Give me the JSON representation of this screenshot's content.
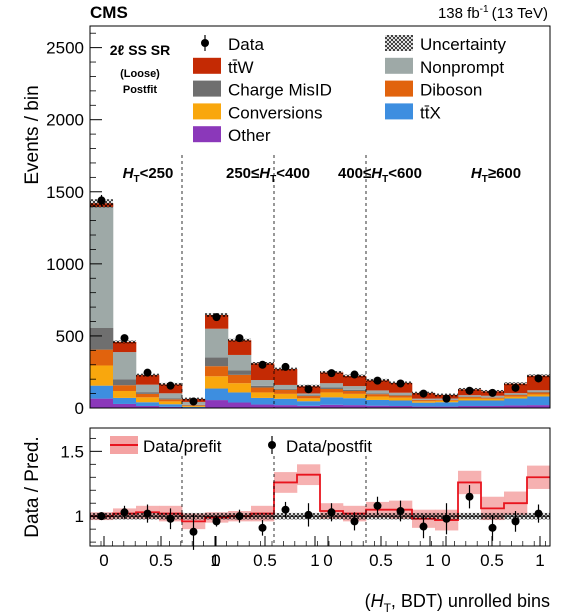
{
  "header": {
    "experiment": "CMS",
    "lumi": "138 fb",
    "lumi_sup": "-1",
    "energy": "(13 TeV)"
  },
  "region": {
    "line1": "2ℓ SS SR",
    "line2": "(Loose)",
    "line3": "Postfit"
  },
  "legend": {
    "left": [
      {
        "label": "Data",
        "kind": "data"
      },
      {
        "label": "tt̄W",
        "color": "#c42a04"
      },
      {
        "label": "Charge MisID",
        "color": "#6f6f6f"
      },
      {
        "label": "Conversions",
        "color": "#f9a70d"
      },
      {
        "label": "Other",
        "color": "#8b38ba"
      }
    ],
    "right": [
      {
        "label": "Uncertainty",
        "kind": "hatch"
      },
      {
        "label": "Nonprompt",
        "color": "#9ea9a7"
      },
      {
        "label": "Diboson",
        "color": "#e1630d"
      },
      {
        "label": "tt̄X",
        "color": "#3d8ee0"
      }
    ]
  },
  "categories": [
    "H_T<250",
    "250≤H_T<400",
    "400≤H_T<600",
    "H_T≥600"
  ],
  "category_labels": [
    {
      "pre": "",
      "main": "H",
      "sub": "T",
      "post": "<250"
    },
    {
      "pre": "250≤",
      "main": "H",
      "sub": "T",
      "post": "<400"
    },
    {
      "pre": "400≤",
      "main": "H",
      "sub": "T",
      "post": "<600"
    },
    {
      "pre": "",
      "main": "H",
      "sub": "T",
      "post": "≥600"
    }
  ],
  "axes": {
    "upper_ylabel": "Events / bin",
    "upper_yticks": [
      "0",
      "500",
      "1000",
      "1500",
      "2000",
      "2500"
    ],
    "upper_tick_values": [
      0,
      500,
      1000,
      1500,
      2000,
      2500
    ],
    "lower_ylabel": "Data / Pred.",
    "lower_yticks": [
      "1",
      "1.5"
    ],
    "lower_tick_values": [
      1,
      1.5
    ],
    "xticks": [
      "0",
      "0.5",
      "1",
      "0",
      "0.5",
      "1",
      "0",
      "0.5",
      "1",
      "0",
      "0.5",
      "1"
    ],
    "xlabel_pre": "(",
    "xlabel_main": "H",
    "xlabel_sub": "T",
    "xlabel_post": ", BDT) unrolled bins"
  },
  "ratio_legend": {
    "prefit": "Data/prefit",
    "postfit": "Data/postfit"
  },
  "chart_data": {
    "type": "bar",
    "stacked": true,
    "n_bins": 20,
    "bins_per_category": [
      4,
      4,
      4,
      8
    ],
    "ylim": [
      0,
      2650
    ],
    "ratio_ylim": [
      0.77,
      1.68
    ],
    "series": [
      {
        "name": "Other",
        "color": "#8b38ba",
        "values": [
          65,
          28,
          14,
          8,
          2,
          55,
          38,
          24,
          20,
          15,
          22,
          20,
          16,
          14,
          10,
          10,
          14,
          14,
          18,
          20
        ]
      },
      {
        "name": "ttX",
        "color": "#3d8ee0",
        "values": [
          90,
          42,
          26,
          18,
          6,
          80,
          70,
          46,
          44,
          32,
          52,
          48,
          40,
          38,
          27,
          30,
          38,
          38,
          48,
          60
        ]
      },
      {
        "name": "Conversions",
        "color": "#f9a70d",
        "values": [
          140,
          48,
          34,
          20,
          6,
          85,
          64,
          38,
          34,
          20,
          34,
          30,
          24,
          20,
          10,
          10,
          14,
          12,
          12,
          14
        ]
      },
      {
        "name": "Diboson",
        "color": "#e1630d",
        "values": [
          110,
          40,
          24,
          14,
          5,
          70,
          58,
          34,
          28,
          16,
          24,
          20,
          16,
          14,
          8,
          6,
          10,
          8,
          12,
          14
        ]
      },
      {
        "name": "Charge MisID",
        "color": "#6f6f6f",
        "values": [
          150,
          40,
          12,
          8,
          3,
          60,
          30,
          12,
          6,
          4,
          10,
          8,
          6,
          4,
          2,
          2,
          3,
          3,
          3,
          3
        ]
      },
      {
        "name": "Nonprompt",
        "color": "#9ea9a7",
        "values": [
          840,
          190,
          52,
          34,
          20,
          200,
          108,
          40,
          28,
          14,
          30,
          26,
          20,
          16,
          8,
          8,
          10,
          10,
          10,
          12
        ]
      },
      {
        "name": "ttW",
        "color": "#c42a04",
        "values": [
          25,
          70,
          66,
          62,
          20,
          95,
          102,
          115,
          110,
          50,
          75,
          70,
          70,
          68,
          38,
          24,
          40,
          30,
          65,
          100
        ]
      }
    ],
    "data": {
      "values": [
        1440,
        485,
        245,
        155,
        45,
        630,
        485,
        300,
        285,
        130,
        242,
        232,
        190,
        170,
        100,
        65,
        120,
        105,
        140,
        205
      ],
      "errors": [
        38,
        22,
        16,
        13,
        7,
        25,
        22,
        17,
        17,
        11,
        16,
        15,
        14,
        13,
        10,
        8,
        11,
        10,
        12,
        14
      ]
    },
    "ratio_postfit": {
      "values": [
        1.0,
        1.03,
        1.02,
        0.98,
        0.88,
        0.96,
        1.0,
        0.91,
        1.05,
        1.01,
        1.03,
        0.96,
        1.08,
        1.04,
        0.92,
        0.98,
        1.15,
        0.91,
        0.96,
        1.02
      ],
      "errors": [
        0.03,
        0.05,
        0.07,
        0.08,
        0.14,
        0.04,
        0.05,
        0.06,
        0.06,
        0.09,
        0.07,
        0.07,
        0.07,
        0.08,
        0.09,
        0.12,
        0.09,
        0.1,
        0.08,
        0.07
      ]
    },
    "ratio_prefit": {
      "values": [
        1.0,
        1.02,
        1.03,
        1.02,
        0.96,
        0.99,
        1.0,
        1.02,
        1.26,
        1.32,
        1.04,
        1.02,
        1.05,
        1.05,
        0.98,
        0.97,
        1.26,
        1.06,
        1.1,
        1.3
      ],
      "band": [
        0.03,
        0.04,
        0.05,
        0.06,
        0.06,
        0.04,
        0.04,
        0.06,
        0.08,
        0.08,
        0.06,
        0.06,
        0.06,
        0.07,
        0.07,
        0.08,
        0.09,
        0.09,
        0.09,
        0.09
      ]
    }
  }
}
